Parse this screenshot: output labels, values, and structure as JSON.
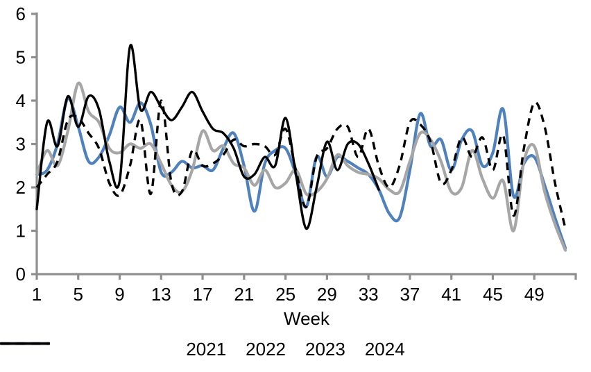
{
  "chart_data": {
    "type": "line",
    "title": "",
    "xlabel": "Week",
    "ylabel": "",
    "xlim": [
      1,
      53
    ],
    "ylim": [
      0,
      6
    ],
    "yticks": [
      0,
      1,
      2,
      3,
      4,
      5,
      6
    ],
    "xticks": [
      1,
      5,
      9,
      13,
      17,
      21,
      25,
      29,
      33,
      37,
      41,
      45,
      49
    ],
    "grid": false,
    "legend_position": "bottom",
    "axis_color": "#8F8F8F",
    "text_color": "#000000",
    "background": "#FFFFFF",
    "x_start_week": 1,
    "series": [
      {
        "name": "2021",
        "color": "#4F81BD",
        "style": "solid",
        "stroke_width": 4.2,
        "values": [
          2.3,
          2.4,
          3.0,
          4.05,
          3.4,
          2.6,
          2.7,
          3.2,
          3.85,
          3.5,
          3.95,
          3.45,
          2.35,
          2.35,
          2.6,
          2.45,
          2.5,
          2.4,
          2.9,
          3.25,
          2.5,
          1.45,
          2.55,
          2.85,
          2.9,
          2.3,
          1.55,
          2.7,
          2.25,
          2.7,
          2.6,
          2.45,
          2.3,
          1.95,
          1.4,
          1.3,
          2.4,
          3.7,
          2.95,
          3.1,
          2.4,
          3.1,
          3.3,
          2.5,
          2.8,
          3.8,
          1.8,
          2.55,
          2.7,
          2.05,
          1.3,
          0.6
        ]
      },
      {
        "name": "2022",
        "color": "#A6A6A6",
        "style": "solid",
        "stroke_width": 4.2,
        "values": [
          2.3,
          2.85,
          2.5,
          3.3,
          4.4,
          3.75,
          3.5,
          2.9,
          2.8,
          3.0,
          2.9,
          3.0,
          2.55,
          2.05,
          1.9,
          2.4,
          3.3,
          2.85,
          2.95,
          2.55,
          2.45,
          2.05,
          2.4,
          2.0,
          2.1,
          2.4,
          1.85,
          1.9,
          2.2,
          2.75,
          2.5,
          2.35,
          2.3,
          2.2,
          1.95,
          1.9,
          2.6,
          3.25,
          3.1,
          2.6,
          1.9,
          2.0,
          2.85,
          2.2,
          1.75,
          2.15,
          1.0,
          2.6,
          2.95,
          1.9,
          1.15,
          0.55
        ]
      },
      {
        "name": "2023",
        "color": "#000000",
        "style": "dashed",
        "stroke_width": 3.4,
        "values": [
          2.0,
          2.3,
          2.6,
          3.55,
          3.6,
          3.25,
          2.9,
          2.1,
          1.82,
          2.5,
          3.55,
          1.85,
          4.0,
          2.1,
          1.9,
          2.85,
          2.5,
          2.55,
          2.75,
          3.1,
          2.95,
          3.0,
          2.95,
          2.75,
          3.35,
          2.4,
          1.55,
          2.7,
          2.9,
          3.35,
          3.4,
          2.7,
          3.35,
          2.5,
          2.0,
          2.5,
          3.5,
          3.45,
          3.05,
          2.1,
          2.4,
          3.15,
          2.7,
          3.15,
          2.4,
          3.2,
          1.35,
          2.9,
          3.95,
          3.4,
          2.1,
          1.05
        ]
      },
      {
        "name": "2024",
        "color": "#000000",
        "style": "solid",
        "stroke_width": 3.4,
        "values": [
          1.5,
          3.5,
          2.95,
          4.1,
          3.4,
          4.1,
          3.8,
          2.6,
          2.15,
          5.25,
          3.8,
          4.2,
          3.85,
          3.55,
          3.85,
          4.2,
          3.75,
          3.35,
          3.25,
          2.9,
          2.25,
          2.3,
          2.7,
          2.5,
          3.6,
          2.3,
          1.05,
          2.0,
          3.05,
          2.4,
          3.0,
          3.0,
          2.55,
          1.95
        ]
      }
    ]
  }
}
